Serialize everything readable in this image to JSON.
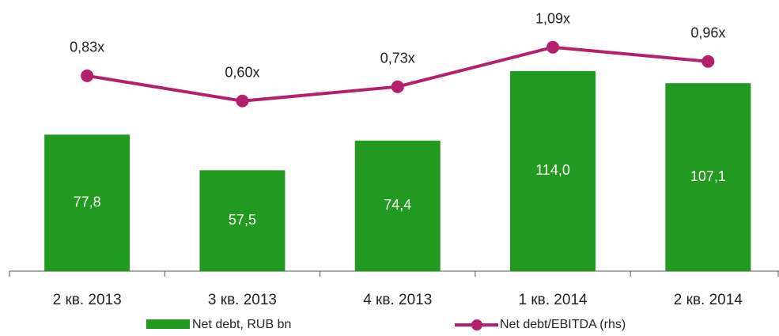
{
  "chart_data": {
    "type": "bar",
    "categories": [
      "2 кв. 2013",
      "3 кв. 2013",
      "4 кв. 2013",
      "1 кв. 2014",
      "2 кв. 2014"
    ],
    "series": [
      {
        "name": "Net  debt, RUB bn",
        "type": "bar",
        "color": "#22991f",
        "values": [
          77.8,
          57.5,
          74.4,
          114.0,
          107.1
        ],
        "value_labels": [
          "77,8",
          "57,5",
          "74,4",
          "114,0",
          "107,1"
        ]
      },
      {
        "name": "Net debt/EBITDA (rhs)",
        "type": "line",
        "axis": "y2",
        "color": "#b5206e",
        "values": [
          0.83,
          0.6,
          0.73,
          1.09,
          0.96
        ],
        "value_labels": [
          "0,83x",
          "0,60x",
          "0,73x",
          "1,09x",
          "0,96x"
        ]
      }
    ],
    "ylim": [
      0,
      154.5
    ],
    "y2lim": [
      -0.95,
      1.52
    ]
  }
}
